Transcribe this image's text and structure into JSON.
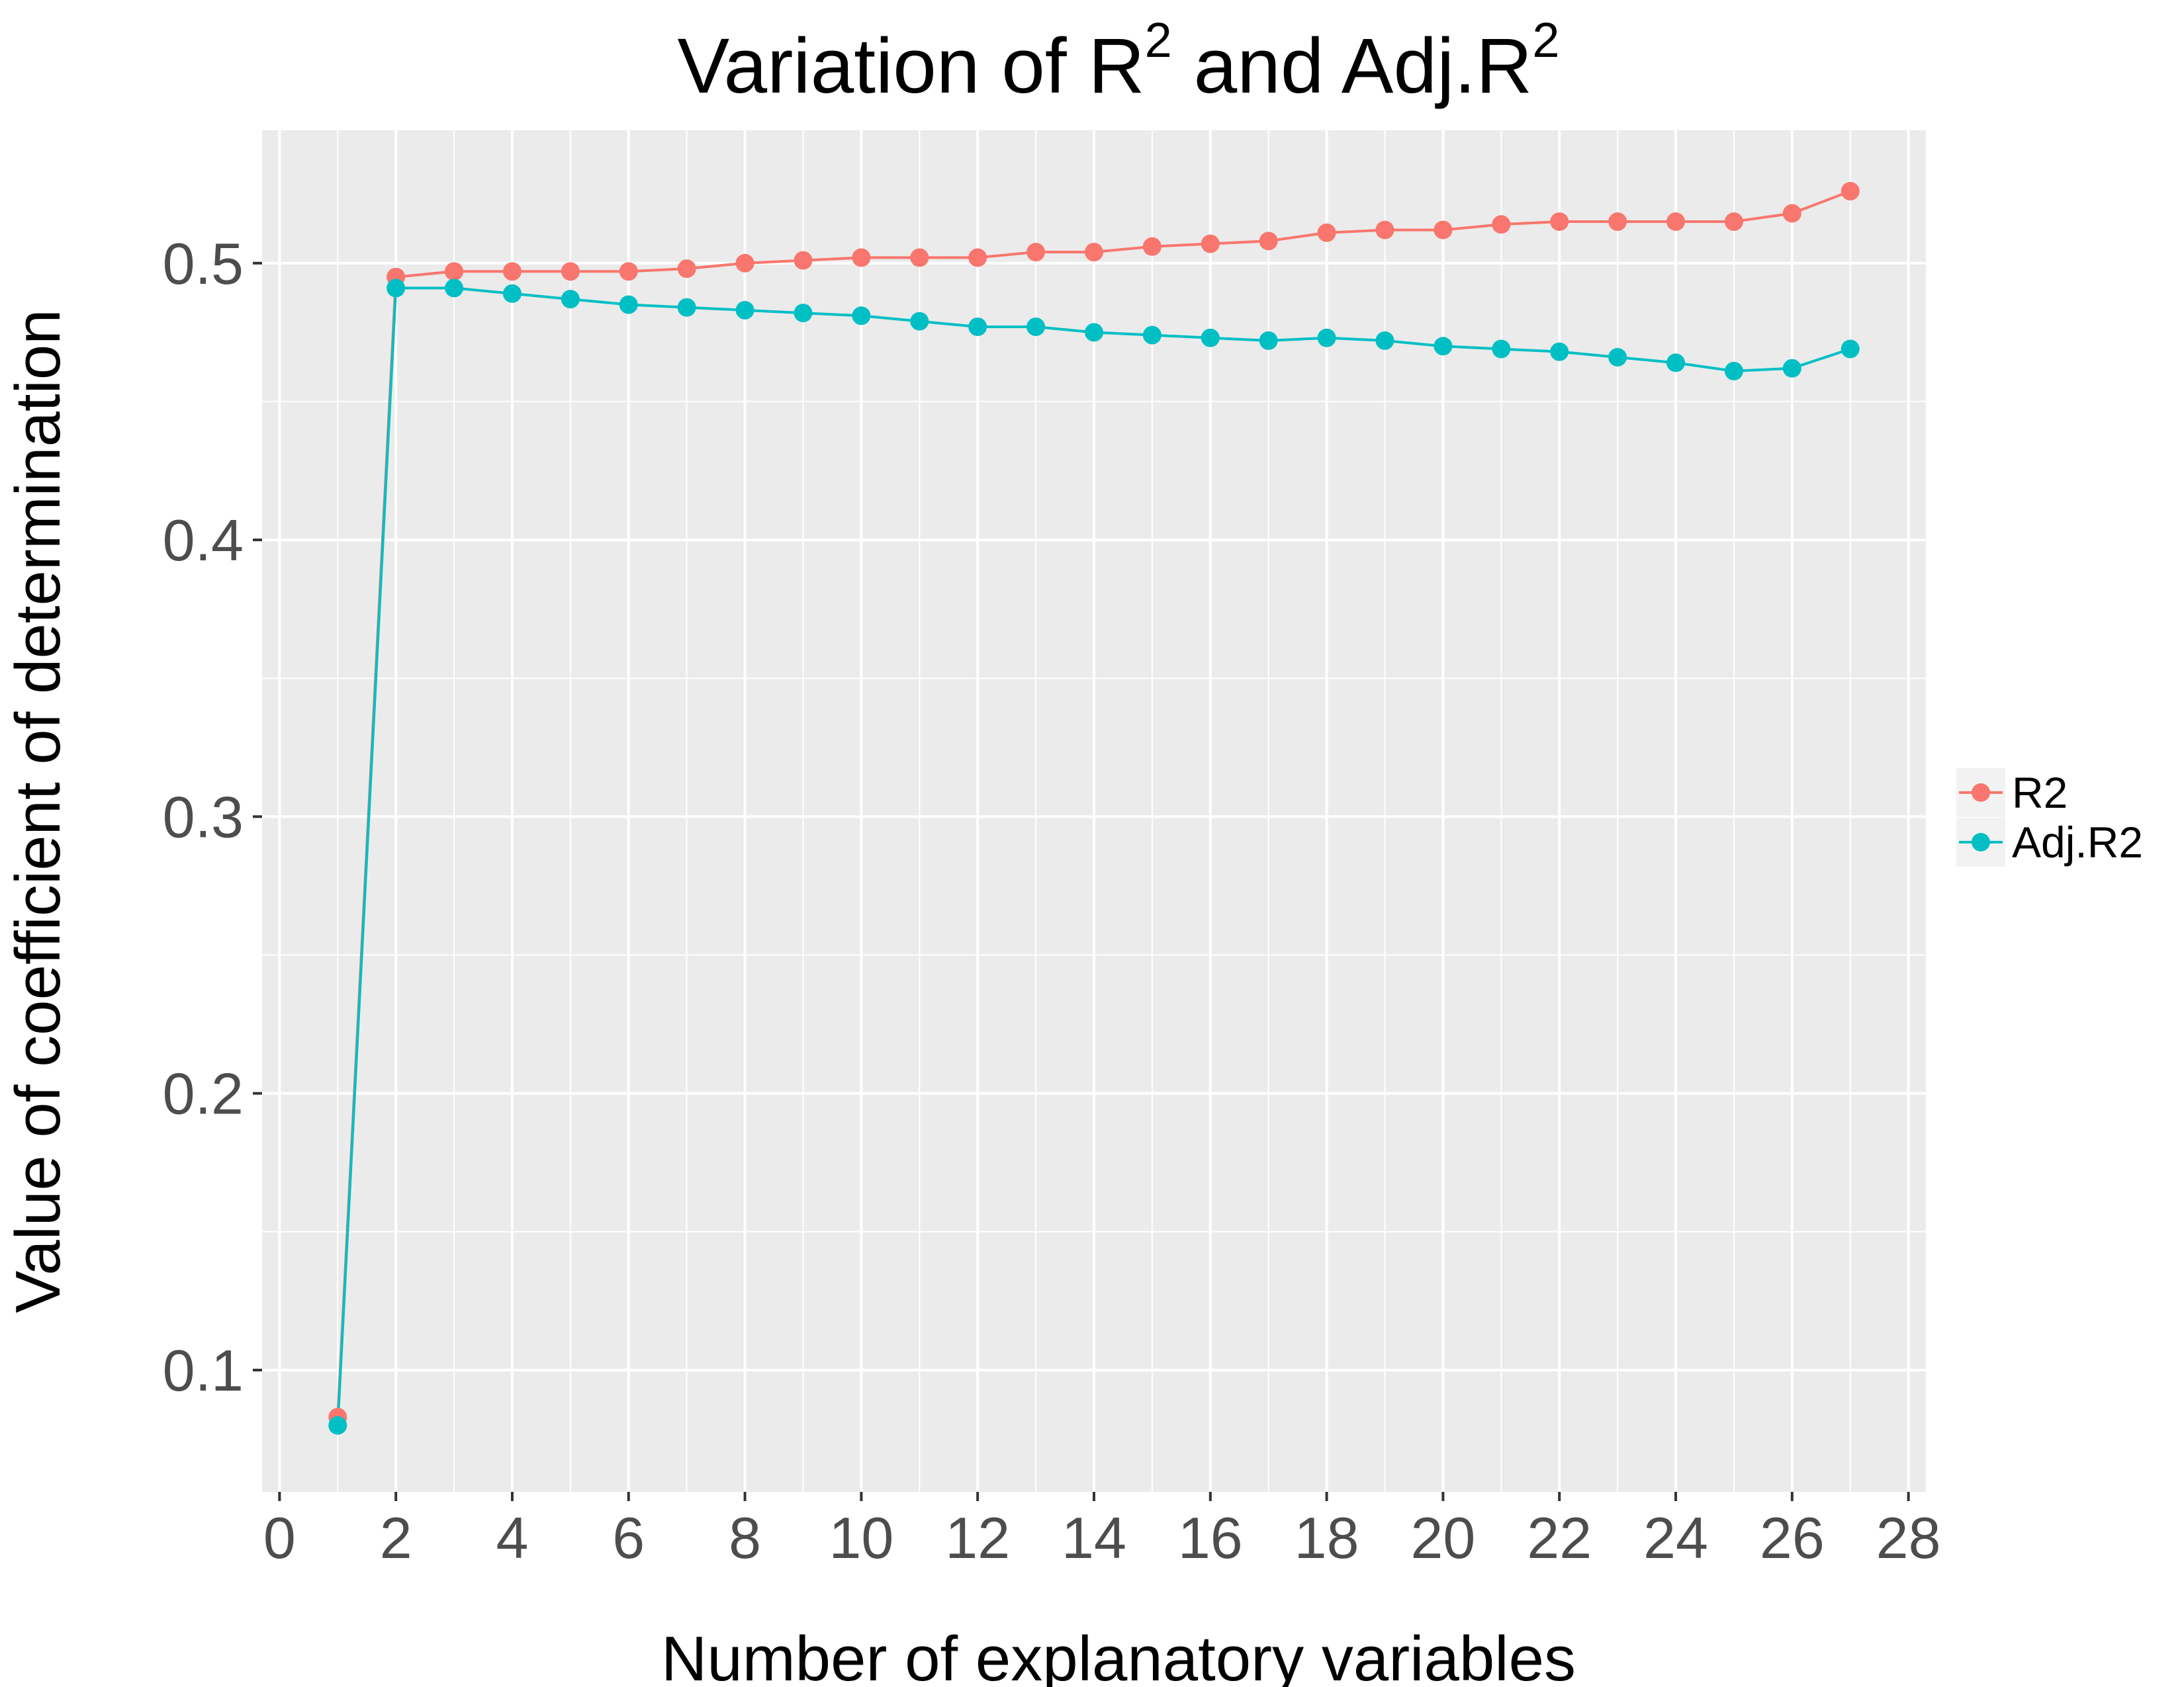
{
  "chart_data": {
    "type": "line",
    "title": {
      "main": "Variation of R",
      "sup1": "2",
      "middle": " and Adj.R",
      "sup2": "2"
    },
    "xlabel": "Number of explanatory variables",
    "ylabel": "Value of coefficient of determination",
    "xlim": [
      -0.3,
      28.3
    ],
    "ylim": [
      0.056,
      0.548
    ],
    "x_ticks": [
      0,
      2,
      4,
      6,
      8,
      10,
      12,
      14,
      16,
      18,
      20,
      22,
      24,
      26,
      28
    ],
    "x_tick_labels": [
      "0",
      "2",
      "4",
      "6",
      "8",
      "10",
      "12",
      "14",
      "16",
      "18",
      "20",
      "22",
      "24",
      "26",
      "28"
    ],
    "y_ticks": [
      0.1,
      0.2,
      0.3,
      0.4,
      0.5
    ],
    "y_tick_labels": [
      "0.1",
      "0.2",
      "0.3",
      "0.4",
      "0.5"
    ],
    "grid": true,
    "legend_position": "right",
    "x": [
      1,
      2,
      3,
      4,
      5,
      6,
      7,
      8,
      9,
      10,
      11,
      12,
      13,
      14,
      15,
      16,
      17,
      18,
      19,
      20,
      21,
      22,
      23,
      24,
      25,
      26,
      27
    ],
    "series": [
      {
        "name": "R2",
        "color": "#F8766D",
        "values": [
          0.083,
          0.495,
          0.497,
          0.497,
          0.497,
          0.497,
          0.498,
          0.5,
          0.501,
          0.502,
          0.502,
          0.502,
          0.504,
          0.504,
          0.506,
          0.507,
          0.508,
          0.511,
          0.512,
          0.512,
          0.514,
          0.515,
          0.515,
          0.515,
          0.515,
          0.518,
          0.526
        ]
      },
      {
        "name": "Adj.R2",
        "color": "#00BFC4",
        "values": [
          0.08,
          0.491,
          0.491,
          0.489,
          0.487,
          0.485,
          0.484,
          0.483,
          0.482,
          0.481,
          0.479,
          0.477,
          0.477,
          0.475,
          0.474,
          0.473,
          0.472,
          0.473,
          0.472,
          0.47,
          0.469,
          0.468,
          0.466,
          0.464,
          0.461,
          0.462,
          0.469
        ]
      }
    ],
    "panel_background": "#EBEBEB",
    "grid_color": "#FFFFFF"
  }
}
